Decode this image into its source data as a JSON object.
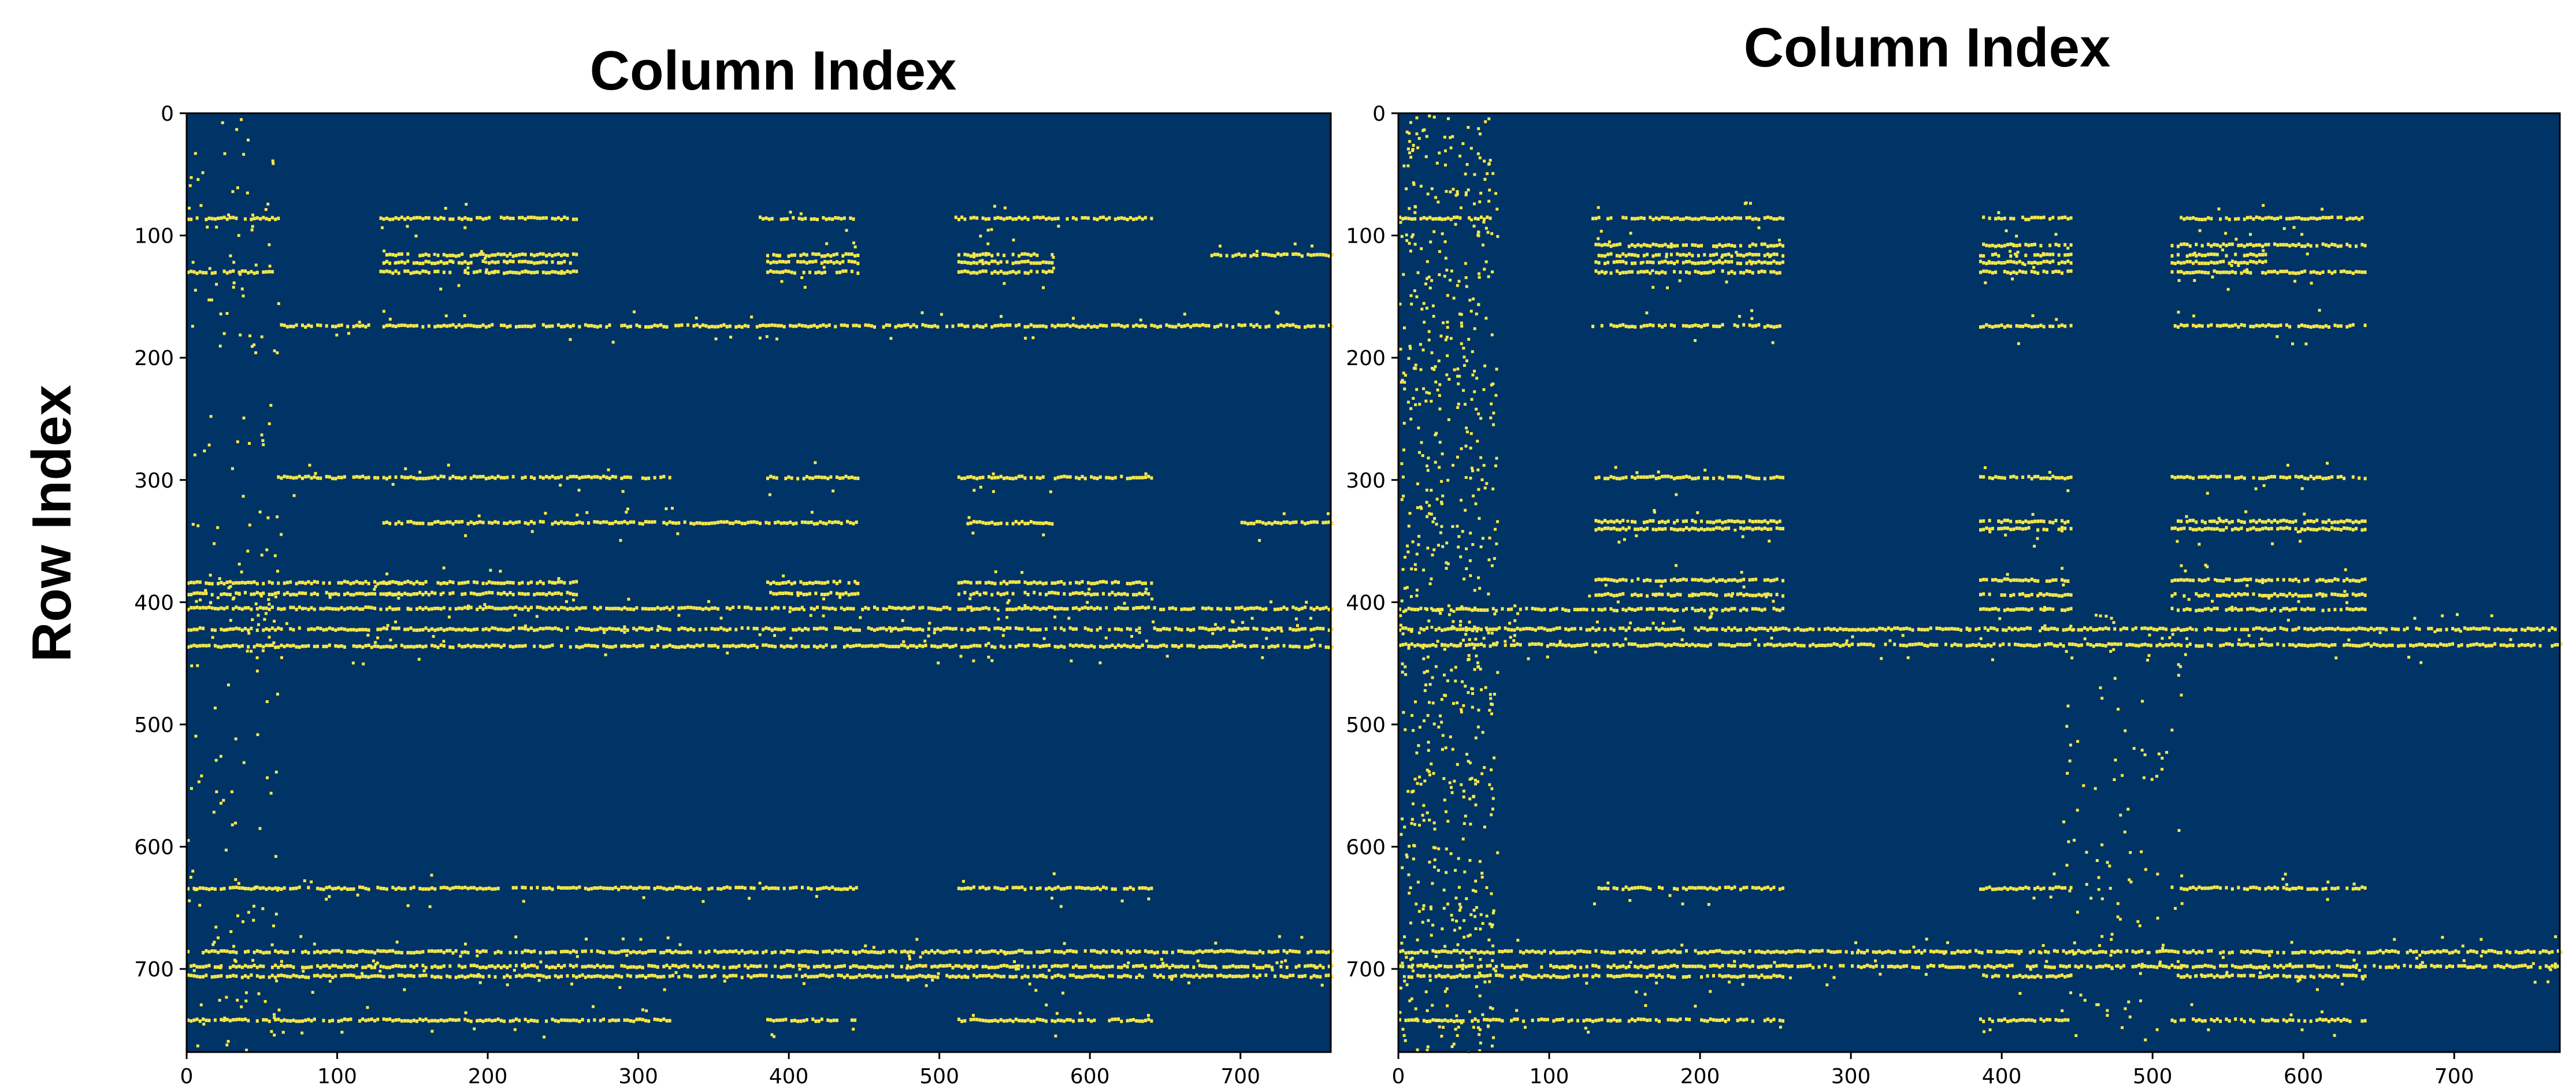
{
  "figure": {
    "row_axis_label": "Row Index"
  },
  "colors": {
    "background": "#003366",
    "marker": "#f5e94a"
  },
  "chart_data": [
    {
      "type": "heatmap",
      "title": "Column Index",
      "xlabel": "",
      "ylabel": "Row Index",
      "xlim": [
        0,
        760
      ],
      "ylim": [
        768,
        0
      ],
      "x_ticks": [
        0,
        100,
        200,
        300,
        400,
        500,
        600,
        700
      ],
      "y_ticks": [
        0,
        100,
        200,
        300,
        400,
        500,
        600,
        700
      ],
      "grid": false,
      "dense_rows": [
        {
          "row": 86,
          "segments": [
            [
              0,
              62
            ],
            [
              128,
              258
            ],
            [
              380,
              445
            ],
            [
              510,
              640
            ]
          ]
        },
        {
          "row": 116,
          "segments": [
            [
              130,
              258
            ],
            [
              385,
              445
            ],
            [
              512,
              575
            ],
            [
              680,
              760
            ]
          ]
        },
        {
          "row": 122,
          "segments": [
            [
              130,
              255
            ],
            [
              385,
              445
            ],
            [
              512,
              575
            ]
          ]
        },
        {
          "row": 130,
          "segments": [
            [
              0,
              60
            ],
            [
              128,
              258
            ],
            [
              385,
              445
            ],
            [
              512,
              575
            ]
          ]
        },
        {
          "row": 174,
          "segments": [
            [
              62,
              760
            ]
          ]
        },
        {
          "row": 298,
          "segments": [
            [
              60,
              320
            ],
            [
              385,
              445
            ],
            [
              512,
              640
            ]
          ]
        },
        {
          "row": 335,
          "segments": [
            [
              130,
              445
            ],
            [
              512,
              575
            ],
            [
              700,
              760
            ]
          ]
        },
        {
          "row": 384,
          "segments": [
            [
              0,
              140
            ],
            [
              130,
              258
            ],
            [
              385,
              445
            ],
            [
              512,
              640
            ]
          ]
        },
        {
          "row": 393,
          "segments": [
            [
              0,
              140
            ],
            [
              130,
              258
            ],
            [
              385,
              445
            ],
            [
              512,
              640
            ]
          ]
        },
        {
          "row": 405,
          "segments": [
            [
              0,
              760
            ]
          ]
        },
        {
          "row": 422,
          "segments": [
            [
              0,
              760
            ]
          ]
        },
        {
          "row": 436,
          "segments": [
            [
              0,
              760
            ]
          ]
        },
        {
          "row": 634,
          "segments": [
            [
              0,
              445
            ],
            [
              512,
              640
            ]
          ]
        },
        {
          "row": 686,
          "segments": [
            [
              0,
              760
            ]
          ]
        },
        {
          "row": 698,
          "segments": [
            [
              0,
              760
            ]
          ]
        },
        {
          "row": 706,
          "segments": [
            [
              0,
              760
            ]
          ]
        },
        {
          "row": 742,
          "segments": [
            [
              0,
              320
            ],
            [
              385,
              445
            ],
            [
              512,
              640
            ]
          ]
        }
      ],
      "scatter_clusters": [
        {
          "x_range": [
            0,
            62
          ],
          "y_range": [
            0,
            768
          ],
          "count": 170
        }
      ]
    },
    {
      "type": "heatmap",
      "title": "Column Index",
      "xlabel": "",
      "ylabel": "",
      "xlim": [
        0,
        770
      ],
      "ylim": [
        768,
        0
      ],
      "x_ticks": [
        0,
        100,
        200,
        300,
        400,
        500,
        600,
        700
      ],
      "y_ticks": [
        0,
        100,
        200,
        300,
        400,
        500,
        600,
        700
      ],
      "grid": false,
      "dense_rows": [
        {
          "row": 86,
          "segments": [
            [
              0,
              62
            ],
            [
              128,
              255
            ],
            [
              385,
              445
            ],
            [
              512,
              640
            ]
          ]
        },
        {
          "row": 108,
          "segments": [
            [
              130,
              255
            ],
            [
              385,
              445
            ],
            [
              512,
              640
            ]
          ]
        },
        {
          "row": 116,
          "segments": [
            [
              130,
              255
            ],
            [
              385,
              445
            ],
            [
              512,
              575
            ]
          ]
        },
        {
          "row": 122,
          "segments": [
            [
              130,
              255
            ],
            [
              385,
              445
            ],
            [
              512,
              575
            ]
          ]
        },
        {
          "row": 130,
          "segments": [
            [
              128,
              255
            ],
            [
              385,
              445
            ],
            [
              512,
              640
            ]
          ]
        },
        {
          "row": 174,
          "segments": [
            [
              128,
              255
            ],
            [
              385,
              445
            ],
            [
              512,
              640
            ]
          ]
        },
        {
          "row": 298,
          "segments": [
            [
              130,
              255
            ],
            [
              385,
              445
            ],
            [
              512,
              640
            ]
          ]
        },
        {
          "row": 334,
          "segments": [
            [
              130,
              255
            ],
            [
              385,
              445
            ],
            [
              512,
              640
            ]
          ]
        },
        {
          "row": 340,
          "segments": [
            [
              130,
              255
            ],
            [
              385,
              445
            ],
            [
              512,
              640
            ]
          ]
        },
        {
          "row": 382,
          "segments": [
            [
              130,
              255
            ],
            [
              385,
              445
            ],
            [
              512,
              640
            ]
          ]
        },
        {
          "row": 394,
          "segments": [
            [
              130,
              255
            ],
            [
              385,
              445
            ],
            [
              512,
              640
            ]
          ]
        },
        {
          "row": 406,
          "segments": [
            [
              0,
              255
            ],
            [
              385,
              445
            ],
            [
              512,
              640
            ]
          ]
        },
        {
          "row": 422,
          "segments": [
            [
              0,
              770
            ]
          ]
        },
        {
          "row": 435,
          "segments": [
            [
              0,
              770
            ]
          ]
        },
        {
          "row": 634,
          "segments": [
            [
              128,
              255
            ],
            [
              385,
              445
            ],
            [
              512,
              640
            ]
          ]
        },
        {
          "row": 686,
          "segments": [
            [
              0,
              770
            ]
          ]
        },
        {
          "row": 698,
          "segments": [
            [
              0,
              770
            ]
          ]
        },
        {
          "row": 706,
          "segments": [
            [
              0,
              255
            ],
            [
              385,
              445
            ],
            [
              512,
              640
            ]
          ]
        },
        {
          "row": 742,
          "segments": [
            [
              0,
              255
            ],
            [
              385,
              445
            ],
            [
              512,
              640
            ]
          ]
        }
      ],
      "scatter_clusters": [
        {
          "x_range": [
            0,
            65
          ],
          "y_range": [
            0,
            768
          ],
          "count": 700
        },
        {
          "x_range": [
            440,
            520
          ],
          "y_range": [
            400,
            768
          ],
          "count": 110
        }
      ]
    }
  ]
}
